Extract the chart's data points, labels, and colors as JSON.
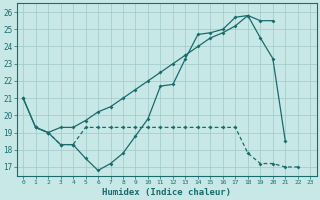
{
  "xlabel": "Humidex (Indice chaleur)",
  "background_color": "#c8e8e8",
  "grid_color": "#a0c8c8",
  "line_color": "#1a6b6b",
  "xlim": [
    -0.5,
    23.5
  ],
  "ylim": [
    16.5,
    26.5
  ],
  "yticks": [
    17,
    18,
    19,
    20,
    21,
    22,
    23,
    24,
    25,
    26
  ],
  "line1_x": [
    0,
    1,
    2,
    3,
    4,
    5,
    6,
    7,
    8,
    9,
    10,
    11,
    12,
    13,
    14,
    15,
    16,
    17,
    18,
    19,
    20
  ],
  "line1_y": [
    21.0,
    19.3,
    19.0,
    19.3,
    19.3,
    19.7,
    20.2,
    20.5,
    21.0,
    21.5,
    22.0,
    22.5,
    23.0,
    23.5,
    24.0,
    24.5,
    24.8,
    25.2,
    25.8,
    25.5,
    25.5
  ],
  "line2_x": [
    0,
    1,
    2,
    3,
    4,
    5,
    6,
    7,
    8,
    9,
    10,
    11,
    12,
    13,
    14,
    15,
    16,
    17,
    18,
    19,
    20,
    21
  ],
  "line2_y": [
    21.0,
    19.3,
    19.0,
    18.3,
    18.3,
    17.5,
    16.8,
    17.2,
    17.8,
    18.8,
    19.8,
    21.7,
    21.8,
    23.3,
    24.7,
    24.8,
    25.0,
    25.7,
    25.8,
    24.5,
    23.3,
    18.5
  ],
  "line3_x": [
    1,
    2,
    3,
    4,
    5,
    6,
    7,
    8,
    9,
    10,
    11,
    12,
    13,
    14,
    15,
    16,
    17,
    18,
    19,
    20,
    21,
    22
  ],
  "line3_y": [
    19.3,
    19.0,
    18.3,
    18.3,
    19.3,
    19.3,
    19.3,
    19.3,
    19.3,
    19.3,
    19.3,
    19.3,
    19.3,
    19.3,
    19.3,
    19.3,
    19.3,
    17.8,
    17.2,
    17.2,
    17.0,
    17.0
  ]
}
